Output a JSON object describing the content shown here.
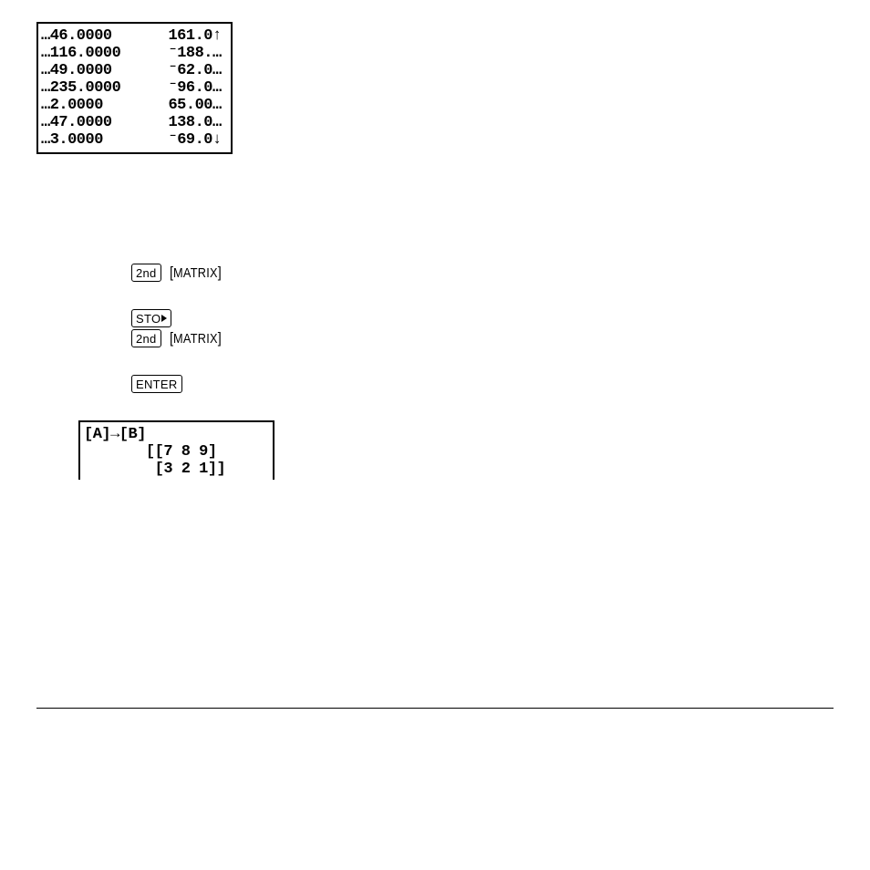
{
  "screen1": {
    "rows": [
      {
        "c1": "…46.0000",
        "c2": "161.0",
        "c3": "↑"
      },
      {
        "c1": "…116.0000",
        "c2": "⁻188.",
        "c3": "…"
      },
      {
        "c1": "…49.0000",
        "c2": "⁻62.0",
        "c3": "…"
      },
      {
        "c1": "…235.0000",
        "c2": "⁻96.0",
        "c3": "…"
      },
      {
        "c1": "…2.0000",
        "c2": "65.00",
        "c3": "…"
      },
      {
        "c1": "…47.0000",
        "c2": "138.0",
        "c3": "…"
      },
      {
        "c1": "…3.0000",
        "c2": "⁻69.0",
        "c3": "↓"
      }
    ]
  },
  "keys": {
    "second": "2nd",
    "matrix": "MATRIX",
    "sto": "STO",
    "enter": "ENTER"
  },
  "screen2": {
    "line1": "[A]→[B]",
    "line2": "       [[7 8 9]",
    "line3": "        [3 2 1]]"
  }
}
